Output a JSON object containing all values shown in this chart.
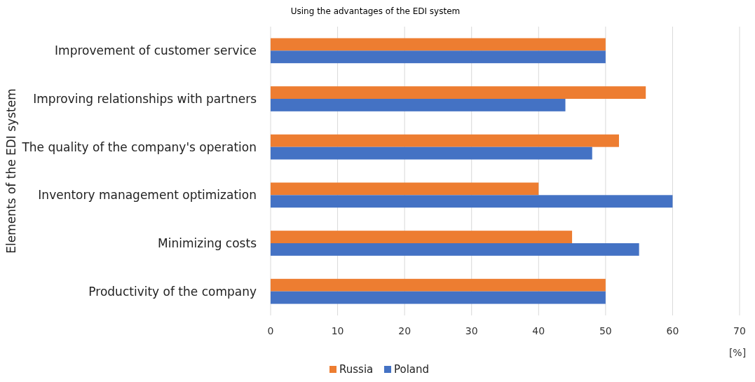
{
  "chart_data": {
    "type": "bar",
    "orientation": "horizontal",
    "title": "Using the advantages of the EDI system",
    "ylabel": "Elements of the EDI system",
    "xlabel": "[%]",
    "categories": [
      "Improvement of customer service",
      "Improving relationships with partners",
      "The quality of the company's operation",
      "Inventory management optimization",
      "Minimizing costs",
      "Productivity of the company"
    ],
    "series": [
      {
        "name": "Russia",
        "color": "#ed7d31",
        "values": [
          50,
          56,
          52,
          40,
          45,
          50
        ]
      },
      {
        "name": "Poland",
        "color": "#4472c4",
        "values": [
          50,
          44,
          48,
          60,
          55,
          50
        ]
      }
    ],
    "xlim": [
      0,
      70
    ],
    "xticks": [
      0,
      10,
      20,
      30,
      40,
      50,
      60,
      70
    ],
    "grid": "x",
    "legend": "bottom"
  }
}
